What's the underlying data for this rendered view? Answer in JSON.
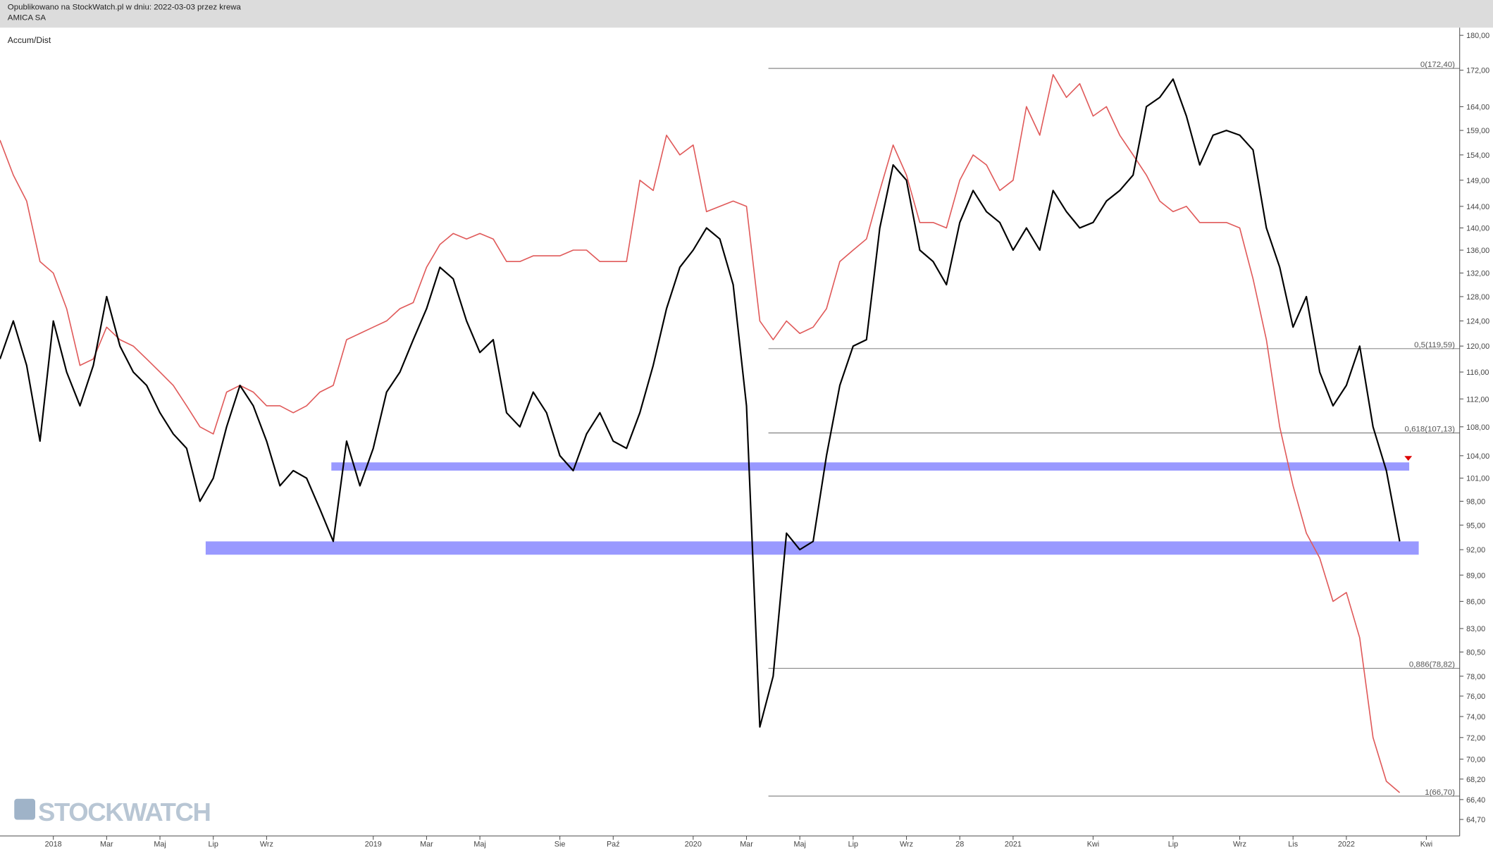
{
  "chart_data": {
    "type": "line",
    "caption": "Opublikowano na StockWatch.pl w dniu: 2022-03-03 przez krewa",
    "title": "AMICA SA",
    "watermark": "STOCKWATCH",
    "log_scale": true,
    "grid": false,
    "ylim": [
      63.4,
      181.6
    ],
    "yticks": [
      {
        "value": 180,
        "label": "180,00"
      },
      {
        "value": 172,
        "label": "172,00"
      },
      {
        "value": 164,
        "label": "164,00"
      },
      {
        "value": 159,
        "label": "159,00"
      },
      {
        "value": 154,
        "label": "154,00"
      },
      {
        "value": 149,
        "label": "149,00"
      },
      {
        "value": 144,
        "label": "144,00"
      },
      {
        "value": 140,
        "label": "140,00"
      },
      {
        "value": 136,
        "label": "136,00"
      },
      {
        "value": 132,
        "label": "132,00"
      },
      {
        "value": 128,
        "label": "128,00"
      },
      {
        "value": 124,
        "label": "124,00"
      },
      {
        "value": 120,
        "label": "120,00"
      },
      {
        "value": 116,
        "label": "116,00"
      },
      {
        "value": 112,
        "label": "112,00"
      },
      {
        "value": 108,
        "label": "108,00"
      },
      {
        "value": 104,
        "label": "104,00"
      },
      {
        "value": 101,
        "label": "101,00"
      },
      {
        "value": 98,
        "label": "98,00"
      },
      {
        "value": 95,
        "label": "95,00"
      },
      {
        "value": 92,
        "label": "92,00"
      },
      {
        "value": 89,
        "label": "89,00"
      },
      {
        "value": 86,
        "label": "86,00"
      },
      {
        "value": 83,
        "label": "83,00"
      },
      {
        "value": 80.5,
        "label": "80,50"
      },
      {
        "value": 78,
        "label": "78,00"
      },
      {
        "value": 76,
        "label": "76,00"
      },
      {
        "value": 74,
        "label": "74,00"
      },
      {
        "value": 72,
        "label": "72,00"
      },
      {
        "value": 70,
        "label": "70,00"
      },
      {
        "value": 68.2,
        "label": "68,20"
      },
      {
        "value": 66.4,
        "label": "66,40"
      },
      {
        "value": 64.7,
        "label": "64,70"
      }
    ],
    "categories": [
      null,
      null,
      null,
      null,
      "2018",
      null,
      null,
      null,
      "Mar",
      null,
      null,
      null,
      "Maj",
      null,
      null,
      null,
      "Lip",
      null,
      null,
      null,
      "Wrz",
      null,
      null,
      null,
      null,
      null,
      null,
      null,
      "2019",
      null,
      null,
      null,
      "Mar",
      null,
      null,
      null,
      "Maj",
      null,
      null,
      null,
      null,
      null,
      "Sie",
      null,
      null,
      null,
      "Paź",
      null,
      null,
      null,
      null,
      null,
      "2020",
      null,
      null,
      null,
      "Mar",
      null,
      null,
      null,
      "Maj",
      null,
      null,
      null,
      "Lip",
      null,
      null,
      null,
      "Wrz",
      null,
      null,
      null,
      "28",
      null,
      null,
      null,
      "2021",
      null,
      null,
      null,
      null,
      null,
      "Kwi",
      null,
      null,
      null,
      null,
      null,
      "Lip",
      null,
      null,
      null,
      null,
      "Wrz",
      null,
      null,
      null,
      "Lis",
      null,
      null,
      null,
      "2022",
      null,
      null,
      null,
      null,
      null,
      "Kwi"
    ],
    "series": [
      {
        "color": "#000000",
        "values": [
          118,
          124,
          117,
          106,
          124,
          116,
          111,
          117,
          128,
          120,
          116,
          114,
          110,
          107,
          105,
          98,
          101,
          108,
          114,
          111,
          106,
          100,
          102,
          101,
          97,
          93,
          106,
          100,
          105,
          113,
          116,
          121,
          126,
          133,
          131,
          124,
          119,
          121,
          110,
          108,
          113,
          110,
          104,
          102,
          107,
          110,
          106,
          105,
          110,
          117,
          126,
          133,
          136,
          140,
          138,
          130,
          111,
          73,
          78,
          94,
          92,
          93,
          104,
          114,
          120,
          121,
          140,
          152,
          149,
          136,
          134,
          130,
          141,
          147,
          143,
          141,
          136,
          140,
          136,
          147,
          143,
          140,
          141,
          145,
          147,
          150,
          164,
          166,
          170,
          162,
          152,
          158,
          159,
          158,
          155,
          140,
          133,
          123,
          128,
          116,
          111,
          114,
          120,
          108,
          102,
          93,
          null,
          null
        ]
      },
      {
        "name": "Accum/Dist",
        "color": "#e05a5a",
        "values": [
          157,
          150,
          145,
          134,
          132,
          126,
          117,
          118,
          123,
          121,
          120,
          118,
          116,
          114,
          111,
          108,
          107,
          113,
          114,
          113,
          111,
          111,
          110,
          111,
          113,
          114,
          121,
          122,
          123,
          124,
          126,
          127,
          133,
          137,
          139,
          138,
          139,
          138,
          134,
          134,
          135,
          135,
          135,
          136,
          136,
          134,
          134,
          134,
          149,
          147,
          158,
          154,
          156,
          143,
          144,
          145,
          144,
          124,
          121,
          124,
          122,
          123,
          126,
          134,
          136,
          138,
          147,
          156,
          150,
          141,
          141,
          140,
          149,
          154,
          152,
          147,
          149,
          164,
          158,
          171,
          166,
          169,
          162,
          164,
          158,
          154,
          150,
          145,
          143,
          144,
          141,
          141,
          141,
          140,
          131,
          121,
          108,
          100,
          94,
          91,
          86,
          87,
          82,
          72,
          68,
          67,
          null,
          null
        ]
      }
    ],
    "levels": [
      {
        "value": 172.4,
        "label": "0(172,40)"
      },
      {
        "value": 119.59,
        "label": "0,5(119,59)"
      },
      {
        "value": 107.13,
        "label": "0,618(107,13)"
      },
      {
        "value": 78.82,
        "label": "0,886(78,82)"
      },
      {
        "value": 66.7,
        "label": "1(66,70)"
      }
    ],
    "zones": [
      {
        "from": 102.0,
        "to": 103.1,
        "color": "#9999ff"
      },
      {
        "from": 91.4,
        "to": 93.0,
        "color": "#9999ff"
      }
    ],
    "marker_value": 103.7,
    "marker_color": "#dd0000"
  }
}
